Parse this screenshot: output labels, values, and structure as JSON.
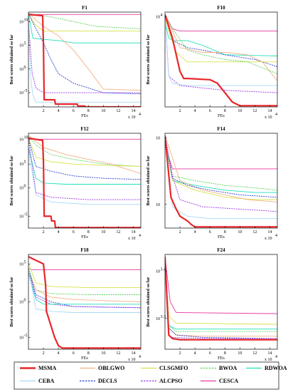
{
  "common": {
    "xlabel": "FEs",
    "ylabel": "Best scores obtained so far",
    "x_multiplier": "x 10",
    "x_exponent": "4",
    "x_ticks": [
      "2",
      "4",
      "6",
      "8",
      "10",
      "12",
      "14"
    ]
  },
  "legend": {
    "placement": "bottom",
    "entries": [
      {
        "name": "MSMA",
        "color": "#e8262a",
        "bold_line": true
      },
      {
        "name": "OBLGWO",
        "color": "#f4b183",
        "dash": false
      },
      {
        "name": "CLSGMFO",
        "color": "#d6e24a",
        "dash": false
      },
      {
        "name": "BWOA",
        "color": "#5ad35a",
        "dash": true
      },
      {
        "name": "RDWOA",
        "color": "#1fe0b8",
        "dash": false
      },
      {
        "name": "CEBA",
        "color": "#a9d8f5",
        "dash": false
      },
      {
        "name": "DECLS",
        "color": "#2a3fd0",
        "dash": true
      },
      {
        "name": "ALCPSO",
        "color": "#9b38e8",
        "dash": true
      },
      {
        "name": "CESCA",
        "color": "#e83aa2",
        "dash": false
      }
    ]
  },
  "chart_data": [
    {
      "type": "line",
      "title": "F1",
      "xlabel": "FEs",
      "ylabel": "Best scores obtained so far",
      "xlim": [
        0,
        15
      ],
      "ylim": [
        0,
        4
      ],
      "y_ticks": [
        {
          "label": "10",
          "exp": "10",
          "v": 3.6
        },
        {
          "label": "10",
          "exp": "5",
          "v": 2.6
        },
        {
          "label": "10",
          "exp": "0",
          "v": 1.6
        },
        {
          "label": "10",
          "exp": "-5",
          "v": 0.6
        }
      ],
      "series": [
        {
          "name": "CESCA",
          "x": [
            0,
            15
          ],
          "y": [
            3.9,
            3.9
          ]
        },
        {
          "name": "CLSGMFO",
          "x": [
            0,
            0.8,
            2,
            15
          ],
          "y": [
            3.95,
            3.5,
            3.2,
            3.2
          ]
        },
        {
          "name": "RDWOA",
          "x": [
            0,
            0.6,
            2,
            4,
            6,
            15
          ],
          "y": [
            3.9,
            2.9,
            2.85,
            2.8,
            2.7,
            2.7
          ]
        },
        {
          "name": "BWOA",
          "x": [
            0,
            1,
            3,
            6,
            9,
            15
          ],
          "y": [
            3.95,
            3.9,
            3.8,
            3.6,
            3.4,
            3.3
          ]
        },
        {
          "name": "OBLGWO",
          "x": [
            0,
            2,
            4,
            6,
            8,
            10,
            15
          ],
          "y": [
            3.95,
            3.4,
            3.0,
            2.4,
            1.6,
            0.75,
            0.7
          ]
        },
        {
          "name": "DECLS",
          "x": [
            0,
            1,
            2,
            3,
            4,
            6,
            8,
            10,
            15
          ],
          "y": [
            3.95,
            3.3,
            2.7,
            2.0,
            1.4,
            1.0,
            0.8,
            0.6,
            0.55
          ]
        },
        {
          "name": "ALCPSO",
          "x": [
            0,
            0.5,
            1,
            2,
            4,
            15
          ],
          "y": [
            3.6,
            1.4,
            0.8,
            0.6,
            0.6,
            0.6
          ]
        },
        {
          "name": "CEBA",
          "x": [
            0,
            0.3,
            0.6,
            1,
            15
          ],
          "y": [
            3.5,
            1.2,
            0.5,
            0.2,
            0.2
          ]
        },
        {
          "name": "MSMA",
          "x": [
            0,
            1.9,
            2.0,
            2.1,
            3.5,
            3.6,
            6.5,
            6.6,
            7.5,
            7.6,
            15
          ],
          "y": [
            3.9,
            3.85,
            2.6,
            0.3,
            0.3,
            0.12,
            0.12,
            0.04,
            0.04,
            0.0,
            0.0
          ]
        }
      ]
    },
    {
      "type": "line",
      "title": "F10",
      "xlabel": "FEs",
      "ylabel": "Best scores obtained so far",
      "xlim": [
        0,
        15
      ],
      "ylim": [
        0,
        4
      ],
      "y_ticks": [
        {
          "label": "10",
          "exp": "4",
          "v": 3.8
        }
      ],
      "series": [
        {
          "name": "CESCA",
          "x": [
            0,
            1,
            2,
            15
          ],
          "y": [
            3.9,
            3.3,
            3.2,
            3.2
          ]
        },
        {
          "name": "RDWOA",
          "x": [
            0,
            0.5,
            1,
            3,
            5,
            8,
            15
          ],
          "y": [
            3.6,
            2.9,
            2.8,
            2.8,
            2.6,
            2.2,
            2.15
          ]
        },
        {
          "name": "DECLS",
          "x": [
            0,
            1,
            3,
            5,
            8,
            12,
            15
          ],
          "y": [
            3.9,
            2.8,
            2.5,
            2.4,
            2.2,
            2.0,
            1.7
          ]
        },
        {
          "name": "CLSGMFO",
          "x": [
            0,
            0.5,
            1.5,
            3,
            15
          ],
          "y": [
            3.8,
            3.2,
            2.3,
            1.9,
            1.9
          ]
        },
        {
          "name": "BWOA",
          "x": [
            0,
            1,
            3,
            5,
            8,
            11,
            15
          ],
          "y": [
            3.9,
            3.3,
            2.4,
            2.2,
            2.0,
            1.9,
            1.4
          ]
        },
        {
          "name": "OBLGWO",
          "x": [
            0,
            2,
            5,
            8,
            11,
            13,
            15
          ],
          "y": [
            3.9,
            2.5,
            2.3,
            2.3,
            2.2,
            1.9,
            1.1
          ]
        },
        {
          "name": "ALCPSO",
          "x": [
            0,
            0.5,
            2,
            5,
            8,
            15
          ],
          "y": [
            3.9,
            1.3,
            0.9,
            0.8,
            0.7,
            0.6
          ]
        },
        {
          "name": "CEBA",
          "x": [
            0,
            0.5,
            1,
            3,
            6,
            15
          ],
          "y": [
            3.9,
            1.3,
            1.0,
            0.9,
            0.9,
            0.9
          ]
        },
        {
          "name": "MSMA",
          "x": [
            0,
            1,
            2,
            2.5,
            3,
            6,
            7,
            8,
            9,
            10,
            15
          ],
          "y": [
            3.9,
            2.9,
            1.5,
            1.2,
            1.2,
            1.15,
            1.0,
            0.6,
            0.2,
            0.05,
            0.05
          ]
        }
      ]
    },
    {
      "type": "line",
      "title": "F12",
      "xlabel": "FEs",
      "ylabel": "Best scores obtained so far",
      "xlim": [
        0,
        15
      ],
      "ylim": [
        0,
        4
      ],
      "y_ticks": [
        {
          "label": "10",
          "exp": "10",
          "v": 3.75
        },
        {
          "label": "10",
          "exp": "5",
          "v": 2.7
        },
        {
          "label": "10",
          "exp": "0",
          "v": 1.7
        },
        {
          "label": "10",
          "exp": "-5",
          "v": 0.5
        }
      ],
      "series": [
        {
          "name": "CESCA",
          "x": [
            0,
            15
          ],
          "y": [
            3.75,
            3.75
          ]
        },
        {
          "name": "BWOA",
          "x": [
            0,
            1,
            3,
            6,
            10,
            15
          ],
          "y": [
            3.9,
            3.5,
            3.1,
            2.9,
            2.7,
            2.6
          ]
        },
        {
          "name": "CLSGMFO",
          "x": [
            0,
            1,
            3,
            6,
            10,
            15
          ],
          "y": [
            3.8,
            3.0,
            2.8,
            2.7,
            2.65,
            2.6
          ]
        },
        {
          "name": "OBLGWO",
          "x": [
            0,
            2,
            5,
            8,
            11,
            14,
            15
          ],
          "y": [
            3.9,
            3.4,
            3.1,
            2.9,
            2.7,
            2.4,
            2.3
          ]
        },
        {
          "name": "DECLS",
          "x": [
            0,
            1,
            3,
            6,
            10,
            15
          ],
          "y": [
            3.8,
            2.6,
            2.4,
            2.2,
            2.1,
            2.05
          ]
        },
        {
          "name": "RDWOA",
          "x": [
            0,
            1,
            2,
            5,
            15
          ],
          "y": [
            3.4,
            2.1,
            1.9,
            1.85,
            1.85
          ]
        },
        {
          "name": "ALCPSO",
          "x": [
            0,
            1,
            3,
            8,
            15
          ],
          "y": [
            3.8,
            1.5,
            1.3,
            1.2,
            1.2
          ]
        },
        {
          "name": "CEBA",
          "x": [
            0,
            1,
            3,
            8,
            15
          ],
          "y": [
            3.3,
            1.4,
            1.1,
            1.0,
            1.0
          ]
        },
        {
          "name": "MSMA",
          "x": [
            0,
            1.9,
            2.0,
            2.1,
            3.0,
            3.1,
            3.5,
            3.6,
            15
          ],
          "y": [
            3.8,
            3.7,
            2.8,
            0.5,
            0.5,
            0.3,
            0.3,
            0.02,
            0.02
          ]
        }
      ]
    },
    {
      "type": "line",
      "title": "F14",
      "xlabel": "FEs",
      "ylabel": "Best scores obtained so far",
      "xlim": [
        0,
        15
      ],
      "ylim": [
        0,
        4
      ],
      "y_ticks": [
        {
          "label": "10",
          "exp": "",
          "v": 3.8
        },
        {
          "label": "10",
          "exp": "",
          "v": 1.0
        }
      ],
      "series": [
        {
          "name": "CESCA",
          "x": [
            0,
            1,
            15
          ],
          "y": [
            3.5,
            2.5,
            2.5
          ]
        },
        {
          "name": "BWOA",
          "x": [
            0,
            1,
            4,
            8,
            12,
            15
          ],
          "y": [
            3.9,
            2.2,
            2.0,
            1.8,
            1.7,
            1.6
          ]
        },
        {
          "name": "RDWOA",
          "x": [
            0,
            1,
            4,
            8,
            12,
            15
          ],
          "y": [
            3.7,
            2.0,
            1.8,
            1.6,
            1.5,
            1.5
          ]
        },
        {
          "name": "CLSGMFO",
          "x": [
            0,
            1,
            4,
            8,
            12,
            15
          ],
          "y": [
            3.9,
            2.0,
            1.6,
            1.3,
            1.2,
            1.2
          ]
        },
        {
          "name": "OBLGWO",
          "x": [
            0,
            2,
            5,
            8,
            11,
            15
          ],
          "y": [
            3.9,
            2.0,
            1.6,
            1.4,
            1.2,
            1.1
          ]
        },
        {
          "name": "DECLS",
          "x": [
            0,
            1,
            3,
            6,
            10,
            15
          ],
          "y": [
            3.9,
            2.1,
            1.8,
            1.6,
            1.4,
            1.3
          ]
        },
        {
          "name": "ALCPSO",
          "x": [
            0,
            1,
            2,
            5,
            10,
            15
          ],
          "y": [
            3.9,
            2.2,
            1.2,
            0.9,
            0.8,
            0.7
          ]
        },
        {
          "name": "CEBA",
          "x": [
            0,
            1,
            3,
            6,
            15
          ],
          "y": [
            3.8,
            0.9,
            0.5,
            0.4,
            0.4
          ]
        },
        {
          "name": "MSMA",
          "x": [
            0,
            0.8,
            1.5,
            2,
            3,
            3.5,
            4,
            15
          ],
          "y": [
            3.9,
            1.3,
            0.8,
            0.5,
            0.3,
            0.15,
            0.05,
            0.05
          ]
        }
      ]
    },
    {
      "type": "line",
      "title": "F18",
      "xlabel": "FEs",
      "ylabel": "Best scores obtained so far",
      "xlim": [
        0,
        15
      ],
      "ylim": [
        0,
        4
      ],
      "y_ticks": [
        {
          "label": "10",
          "exp": "5",
          "v": 3.6
        },
        {
          "label": "10",
          "exp": "0",
          "v": 2.0
        },
        {
          "label": "10",
          "exp": "-5",
          "v": 0.5
        }
      ],
      "series": [
        {
          "name": "CESCA",
          "x": [
            0,
            0.5,
            15
          ],
          "y": [
            3.4,
            3.35,
            3.35
          ]
        },
        {
          "name": "CLSGMFO",
          "x": [
            0,
            1,
            3,
            8,
            15
          ],
          "y": [
            3.6,
            2.8,
            2.65,
            2.6,
            2.6
          ]
        },
        {
          "name": "BWOA",
          "x": [
            0,
            1,
            3,
            8,
            15
          ],
          "y": [
            3.4,
            2.5,
            2.35,
            2.3,
            2.3
          ]
        },
        {
          "name": "OBLGWO",
          "x": [
            0,
            1,
            3,
            6,
            10,
            15
          ],
          "y": [
            3.3,
            2.5,
            2.2,
            2.1,
            2.05,
            2.0
          ]
        },
        {
          "name": "DECLS",
          "x": [
            0,
            1,
            3,
            6,
            15
          ],
          "y": [
            3.4,
            2.3,
            2.0,
            1.8,
            1.75
          ]
        },
        {
          "name": "ALCPSO",
          "x": [
            0,
            1,
            3,
            6,
            15
          ],
          "y": [
            3.3,
            2.2,
            1.9,
            1.8,
            1.75
          ]
        },
        {
          "name": "RDWOA",
          "x": [
            0,
            1,
            2,
            6,
            15
          ],
          "y": [
            3.2,
            2.1,
            1.9,
            1.9,
            1.9
          ]
        },
        {
          "name": "CEBA",
          "x": [
            0,
            1,
            3,
            6,
            15
          ],
          "y": [
            3.4,
            1.7,
            1.6,
            1.55,
            1.55
          ]
        },
        {
          "name": "MSMA",
          "x": [
            0,
            2,
            2.3,
            2.4,
            3,
            3.5,
            4,
            4.5,
            15
          ],
          "y": [
            3.9,
            3.6,
            2.7,
            1.6,
            1.0,
            0.5,
            0.15,
            0.05,
            0.05
          ]
        }
      ]
    },
    {
      "type": "line",
      "title": "F24",
      "xlabel": "FEs",
      "ylabel": "Best scores obtained so far",
      "xlim": [
        0,
        15
      ],
      "ylim": [
        0,
        4
      ],
      "y_ticks": [
        {
          "label": "10",
          "exp": "3.4",
          "v": 3.3
        },
        {
          "label": "10",
          "exp": "3.3",
          "v": 1.3
        }
      ],
      "series": [
        {
          "name": "CESCA",
          "x": [
            0,
            0.7,
            1.5,
            15
          ],
          "y": [
            3.9,
            2.0,
            1.55,
            1.5
          ]
        },
        {
          "name": "CLSGMFO",
          "x": [
            0,
            0.5,
            1.5,
            15
          ],
          "y": [
            3.6,
            1.4,
            1.1,
            1.05
          ]
        },
        {
          "name": "RDWOA",
          "x": [
            0,
            0.5,
            1.5,
            15
          ],
          "y": [
            3.4,
            1.0,
            0.85,
            0.85
          ]
        },
        {
          "name": "BWOA",
          "x": [
            0,
            0.5,
            1.5,
            6,
            15
          ],
          "y": [
            3.6,
            1.0,
            0.75,
            0.75,
            0.75
          ]
        },
        {
          "name": "OBLGWO",
          "x": [
            0,
            0.5,
            1.5,
            5,
            15
          ],
          "y": [
            3.5,
            0.9,
            0.6,
            0.55,
            0.55
          ]
        },
        {
          "name": "DECLS",
          "x": [
            0,
            0.5,
            1.5,
            5,
            15
          ],
          "y": [
            3.6,
            0.9,
            0.6,
            0.5,
            0.45
          ]
        },
        {
          "name": "ALCPSO",
          "x": [
            0,
            0.5,
            1,
            5,
            15
          ],
          "y": [
            3.5,
            0.6,
            0.5,
            0.45,
            0.45
          ]
        },
        {
          "name": "CEBA",
          "x": [
            0,
            0.5,
            1,
            5,
            15
          ],
          "y": [
            3.3,
            0.6,
            0.45,
            0.4,
            0.4
          ]
        },
        {
          "name": "MSMA",
          "x": [
            0,
            0.5,
            1,
            2,
            15
          ],
          "y": [
            3.9,
            0.6,
            0.45,
            0.4,
            0.4
          ]
        }
      ]
    }
  ]
}
